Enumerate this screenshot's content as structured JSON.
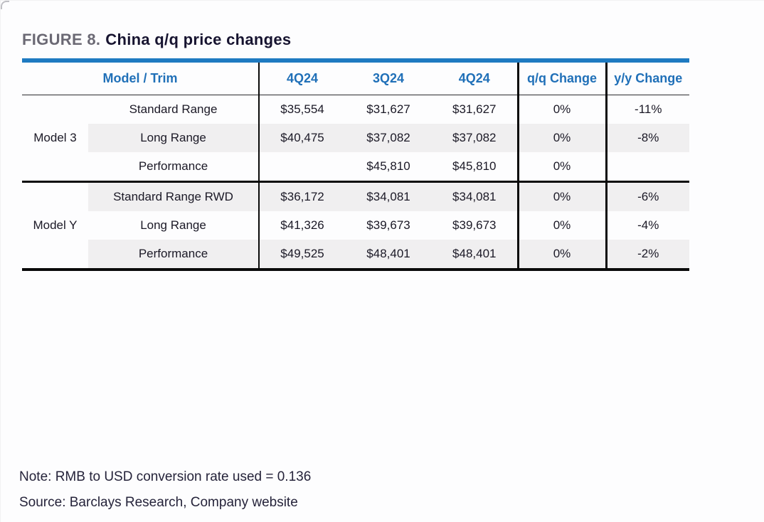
{
  "figure": {
    "label": "FIGURE 8.",
    "title": "China q/q price changes"
  },
  "table": {
    "header": {
      "model_trim": "Model / Trim",
      "cols": [
        "4Q24",
        "3Q24",
        "4Q24",
        "q/q Change",
        "y/y Change"
      ]
    },
    "groups": [
      {
        "model": "Model 3",
        "rows": [
          {
            "trim": "Standard Range",
            "q1": "$35,554",
            "q2": "$31,627",
            "q3": "$31,627",
            "qq": "0%",
            "yy": "-11%",
            "shaded": false
          },
          {
            "trim": "Long Range",
            "q1": "$40,475",
            "q2": "$37,082",
            "q3": "$37,082",
            "qq": "0%",
            "yy": "-8%",
            "shaded": true
          },
          {
            "trim": "Performance",
            "q1": "",
            "q2": "$45,810",
            "q3": "$45,810",
            "qq": "0%",
            "yy": "",
            "shaded": false
          }
        ]
      },
      {
        "model": "Model Y",
        "rows": [
          {
            "trim": "Standard Range RWD",
            "q1": "$36,172",
            "q2": "$34,081",
            "q3": "$34,081",
            "qq": "0%",
            "yy": "-6%",
            "shaded": true
          },
          {
            "trim": "Long Range",
            "q1": "$41,326",
            "q2": "$39,673",
            "q3": "$39,673",
            "qq": "0%",
            "yy": "-4%",
            "shaded": false
          },
          {
            "trim": "Performance",
            "q1": "$49,525",
            "q2": "$48,401",
            "q3": "$48,401",
            "qq": "0%",
            "yy": "-2%",
            "shaded": true
          }
        ]
      }
    ]
  },
  "footer": {
    "note": "Note: RMB to USD conversion rate used = 0.136",
    "source": "Source: Barclays Research, Company website"
  },
  "colors": {
    "accent_blue_rule": "#1e7ac1",
    "header_text_blue": "#2070b8",
    "figure_label_gray": "#6b6974",
    "figure_title_dark": "#171430",
    "body_text": "#1b1926",
    "row_shade": "#f0eff0",
    "rule_black": "#0a0a0a"
  }
}
